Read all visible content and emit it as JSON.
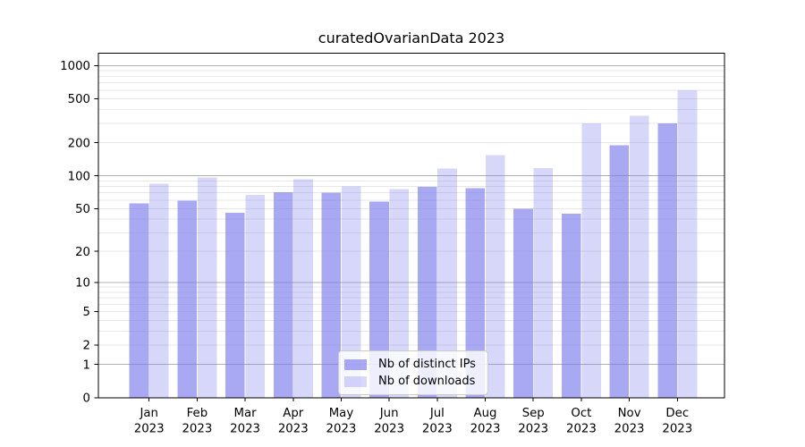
{
  "figure": {
    "background": "#ffffff"
  },
  "chart_data": {
    "type": "bar",
    "title": "curatedOvarianData 2023",
    "categories": [
      "Jan 2023",
      "Feb 2023",
      "Mar 2023",
      "Apr 2023",
      "May 2023",
      "Jun 2023",
      "Jul 2023",
      "Aug 2023",
      "Sep 2023",
      "Oct 2023",
      "Nov 2023",
      "Dec 2023"
    ],
    "series": [
      {
        "name": "Nb of distinct IPs",
        "color": "rgba(123,123,237,0.65)",
        "values": [
          56,
          59,
          46,
          71,
          70,
          58,
          79,
          77,
          50,
          45,
          190,
          300
        ]
      },
      {
        "name": "Nb of downloads",
        "color": "rgba(123,123,237,0.30)",
        "values": [
          85,
          97,
          67,
          93,
          80,
          76,
          117,
          155,
          118,
          300,
          350,
          600
        ]
      }
    ],
    "xlabel": "",
    "ylabel": "",
    "yscale": "log1p",
    "ylim": [
      0,
      1290
    ],
    "yticks": [
      0,
      1,
      2,
      5,
      10,
      20,
      50,
      100,
      200,
      500,
      1000
    ],
    "grid": {
      "on": true,
      "major_color": "#b0b0b0",
      "minor_color": "#e7e7e7"
    },
    "legend": {
      "position": "lower center",
      "labels": [
        "Nb of distinct IPs",
        "Nb of downloads"
      ]
    },
    "axis": {
      "spine_color": "#000000",
      "tick_color": "#000000",
      "label_color": "#000000"
    }
  }
}
